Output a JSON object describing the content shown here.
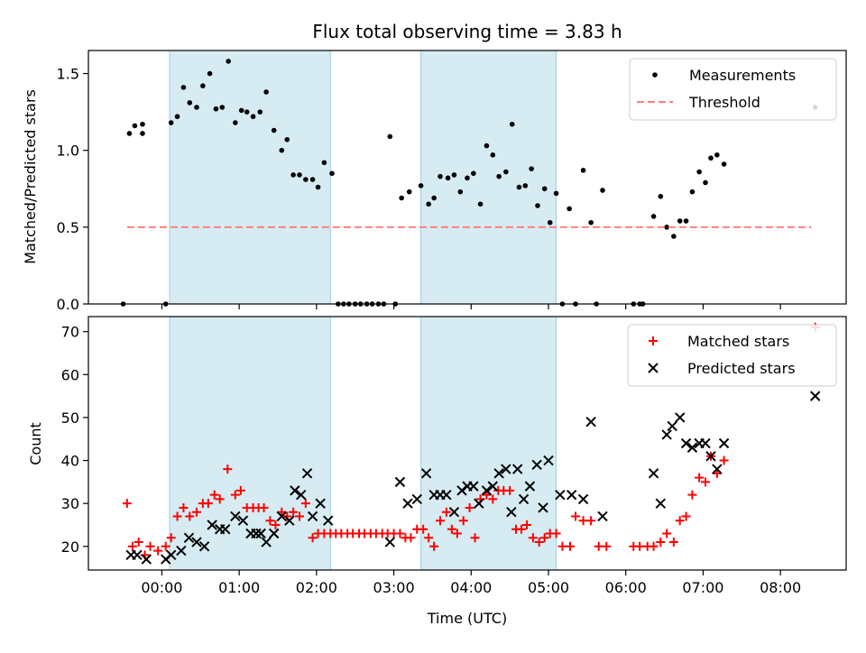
{
  "chart_data": [
    {
      "type": "scatter",
      "title": "Flux total observing time = 3.83 h",
      "xlabel": "",
      "ylabel": "Matched/Predicted stars",
      "ylim": [
        0,
        1.65
      ],
      "xlim": [
        -0.95,
        8.85
      ],
      "yticks": [
        0.0,
        0.5,
        1.0,
        1.5
      ],
      "ytick_labels": [
        "0.0",
        "0.5",
        "1.0",
        "1.5"
      ],
      "shaded_intervals": [
        [
          0.1,
          2.18
        ],
        [
          3.35,
          5.1
        ]
      ],
      "legend_position": "upper right",
      "series": [
        {
          "name": "Measurements",
          "kind": "points",
          "color": "#000000",
          "x": [
            -0.5,
            -0.42,
            -0.35,
            -0.25,
            -0.25,
            0.05,
            0.12,
            0.2,
            0.28,
            0.36,
            0.45,
            0.53,
            0.62,
            0.7,
            0.78,
            0.86,
            0.95,
            1.03,
            1.1,
            1.18,
            1.27,
            1.35,
            1.45,
            1.55,
            1.62,
            1.7,
            1.78,
            1.86,
            1.95,
            2.02,
            2.1,
            2.2,
            2.28,
            2.35,
            2.42,
            2.5,
            2.57,
            2.65,
            2.72,
            2.8,
            2.87,
            2.95,
            3.02,
            3.1,
            3.2,
            3.35,
            3.45,
            3.52,
            3.6,
            3.7,
            3.78,
            3.86,
            3.95,
            4.03,
            4.12,
            4.2,
            4.28,
            4.36,
            4.45,
            4.53,
            4.62,
            4.7,
            4.78,
            4.86,
            4.95,
            5.02,
            5.1,
            5.18,
            5.27,
            5.35,
            5.45,
            5.55,
            5.62,
            5.7,
            6.1,
            6.18,
            6.22,
            6.36,
            6.45,
            6.53,
            6.62,
            6.7,
            6.78,
            6.86,
            6.95,
            7.03,
            7.1,
            7.18,
            7.27,
            8.45
          ],
          "y": [
            0.0,
            1.11,
            1.16,
            1.11,
            1.17,
            0.0,
            1.18,
            1.22,
            1.41,
            1.31,
            1.28,
            1.42,
            1.5,
            1.27,
            1.28,
            1.58,
            1.18,
            1.26,
            1.25,
            1.22,
            1.25,
            1.38,
            1.13,
            1.0,
            1.07,
            0.84,
            0.84,
            0.81,
            0.81,
            0.76,
            0.92,
            0.85,
            0.0,
            0.0,
            0.0,
            0.0,
            0.0,
            0.0,
            0.0,
            0.0,
            0.0,
            1.09,
            0.0,
            0.69,
            0.73,
            0.77,
            0.65,
            0.69,
            0.83,
            0.82,
            0.84,
            0.73,
            0.82,
            0.85,
            0.65,
            1.03,
            0.97,
            0.83,
            0.86,
            1.17,
            0.76,
            0.77,
            0.88,
            0.64,
            0.75,
            0.53,
            0.72,
            0.0,
            0.62,
            0.0,
            0.87,
            0.53,
            0.0,
            0.74,
            0.0,
            0.0,
            0.0,
            0.57,
            0.7,
            0.5,
            0.44,
            0.54,
            0.54,
            0.73,
            0.86,
            0.79,
            0.95,
            0.97,
            0.91,
            1.28
          ]
        },
        {
          "name": "Threshold",
          "kind": "dashed_line",
          "color": "#ff7f7f",
          "x": [
            -0.45,
            8.4
          ],
          "y": [
            0.5,
            0.5
          ]
        }
      ]
    },
    {
      "type": "scatter",
      "title": "",
      "xlabel": "Time (UTC)",
      "ylabel": "Count",
      "ylim": [
        14.5,
        73.5
      ],
      "xlim": [
        -0.95,
        8.85
      ],
      "yticks": [
        20,
        30,
        40,
        50,
        60,
        70
      ],
      "ytick_labels": [
        "20",
        "30",
        "40",
        "50",
        "60",
        "70"
      ],
      "xticks": [
        0,
        1,
        2,
        3,
        4,
        5,
        6,
        7,
        8
      ],
      "xtick_labels": [
        "00:00",
        "01:00",
        "02:00",
        "03:00",
        "04:00",
        "05:00",
        "06:00",
        "07:00",
        "08:00"
      ],
      "shaded_intervals": [
        [
          0.1,
          2.18
        ],
        [
          3.35,
          5.1
        ]
      ],
      "legend_position": "upper right",
      "series": [
        {
          "name": "Matched stars",
          "kind": "plus",
          "color": "#ff0000",
          "x": [
            -0.45,
            -0.38,
            -0.3,
            -0.22,
            -0.15,
            -0.05,
            0.05,
            0.12,
            0.2,
            0.28,
            0.36,
            0.45,
            0.53,
            0.6,
            0.68,
            0.75,
            0.85,
            0.95,
            1.02,
            1.1,
            1.18,
            1.25,
            1.32,
            1.4,
            1.47,
            1.55,
            1.62,
            1.7,
            1.78,
            1.86,
            1.95,
            2.02,
            2.1,
            2.18,
            2.25,
            2.32,
            2.4,
            2.47,
            2.55,
            2.62,
            2.7,
            2.77,
            2.85,
            2.92,
            3.0,
            3.08,
            3.15,
            3.22,
            3.3,
            3.38,
            3.45,
            3.52,
            3.6,
            3.68,
            3.75,
            3.82,
            3.9,
            3.98,
            4.05,
            4.12,
            4.2,
            4.28,
            4.35,
            4.42,
            4.5,
            4.58,
            4.65,
            4.72,
            4.8,
            4.88,
            4.95,
            5.02,
            5.1,
            5.18,
            5.28,
            5.35,
            5.45,
            5.55,
            5.65,
            5.75,
            6.1,
            6.18,
            6.28,
            6.36,
            6.45,
            6.53,
            6.62,
            6.7,
            6.78,
            6.86,
            6.95,
            7.03,
            7.1,
            7.18,
            7.27,
            8.45
          ],
          "y": [
            30,
            20,
            21,
            18,
            20,
            19,
            20,
            22,
            27,
            29,
            27,
            28,
            30,
            30,
            32,
            31,
            38,
            32,
            33,
            29,
            29,
            29,
            29,
            26,
            25,
            28,
            27,
            28,
            27,
            30,
            22,
            23,
            23,
            23,
            23,
            23,
            23,
            23,
            23,
            23,
            23,
            23,
            23,
            23,
            23,
            23,
            22,
            22,
            24,
            24,
            22,
            20,
            26,
            28,
            24,
            23,
            26,
            29,
            22,
            31,
            32,
            31,
            33,
            33,
            33,
            24,
            24,
            25,
            22,
            21,
            22,
            23,
            23,
            20,
            20,
            27,
            26,
            26,
            20,
            20,
            20,
            20,
            20,
            20,
            21,
            23,
            21,
            26,
            27,
            32,
            36,
            35,
            41,
            37,
            40,
            71
          ]
        },
        {
          "name": "Predicted stars",
          "kind": "cross",
          "color": "#000000",
          "x": [
            -0.4,
            -0.32,
            -0.2,
            0.05,
            0.12,
            0.25,
            0.35,
            0.45,
            0.55,
            0.65,
            0.75,
            0.82,
            0.95,
            1.05,
            1.15,
            1.22,
            1.28,
            1.35,
            1.45,
            1.55,
            1.65,
            1.72,
            1.8,
            1.88,
            1.95,
            2.05,
            2.15,
            2.95,
            3.08,
            3.18,
            3.3,
            3.42,
            3.52,
            3.6,
            3.68,
            3.78,
            3.88,
            3.95,
            4.03,
            4.1,
            4.2,
            4.28,
            4.36,
            4.45,
            4.52,
            4.6,
            4.68,
            4.76,
            4.85,
            4.93,
            5.0,
            5.15,
            5.3,
            5.45,
            5.55,
            5.7,
            6.36,
            6.45,
            6.53,
            6.6,
            6.7,
            6.78,
            6.86,
            6.95,
            7.03,
            7.1,
            7.18,
            7.27,
            8.45
          ],
          "y": [
            18,
            18,
            17,
            17,
            18,
            19,
            22,
            21,
            20,
            25,
            24,
            24,
            27,
            26,
            23,
            23,
            23,
            21,
            23,
            27,
            26,
            33,
            32,
            37,
            27,
            30,
            26,
            21,
            35,
            30,
            31,
            37,
            32,
            32,
            32,
            28,
            33,
            34,
            34,
            30,
            33,
            34,
            37,
            38,
            28,
            38,
            31,
            34,
            39,
            29,
            40,
            32,
            32,
            31,
            49,
            27,
            37,
            30,
            46,
            48,
            50,
            44,
            43,
            44,
            44,
            41,
            38,
            44,
            55
          ]
        }
      ]
    }
  ]
}
